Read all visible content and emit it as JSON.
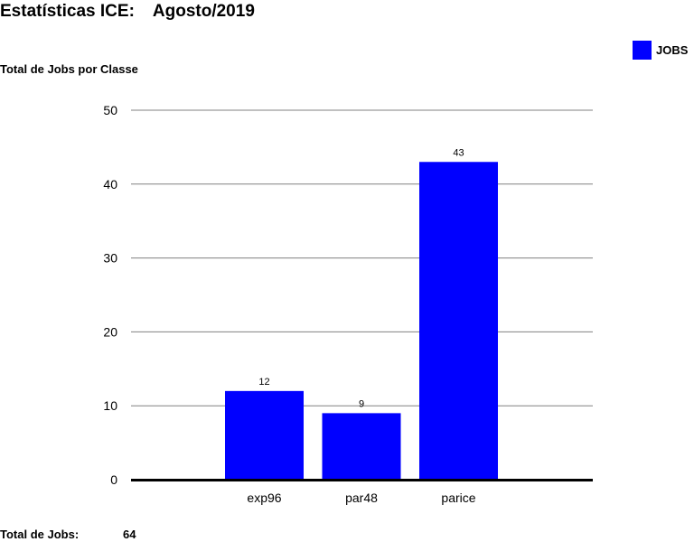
{
  "header": {
    "title": "Estatísticas ICE:",
    "period": "Agosto/2019"
  },
  "chart_data": {
    "type": "bar",
    "title": "Total de Jobs por Classe",
    "categories": [
      "exp96",
      "par48",
      "parice"
    ],
    "series": [
      {
        "name": "JOBS",
        "values": [
          12,
          9,
          43
        ]
      }
    ],
    "data_labels": [
      "12",
      "9",
      "43"
    ],
    "yticks": [
      0,
      10,
      20,
      30,
      40,
      50
    ],
    "ylim": [
      0,
      50
    ],
    "grid": true,
    "legend": "top-right",
    "colors": {
      "bar": "#0000ff",
      "grid": "#808080",
      "axis": "#000000"
    }
  },
  "footer": {
    "total_label": "Total de Jobs:",
    "total_value": "64"
  }
}
